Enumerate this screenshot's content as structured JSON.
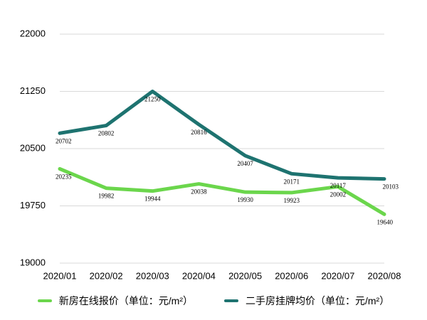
{
  "chart_data": {
    "type": "line",
    "categories": [
      "2020/01",
      "2020/02",
      "2020/03",
      "2020/04",
      "2020/05",
      "2020/06",
      "2020/07",
      "2020/08"
    ],
    "ylim": [
      19000,
      22000
    ],
    "yticks": [
      "19000",
      "19750",
      "20500",
      "21250",
      "22000"
    ],
    "grid": true,
    "legend_position": "bottom",
    "series": [
      {
        "name": "新房在线报价（单位：元/m²）",
        "color": "#6bd64c",
        "values": [
          20235,
          19982,
          19944,
          20038,
          19930,
          19923,
          20002,
          19640
        ],
        "labels": [
          "20235",
          "19982",
          "19944",
          "20038",
          "19930",
          "19923",
          "20002",
          "19640"
        ]
      },
      {
        "name": "二手房挂牌均价（单位：元/m²）",
        "color": "#1e7370",
        "values": [
          20702,
          20802,
          21250,
          20816,
          20407,
          20171,
          20117,
          20103
        ],
        "labels": [
          "20702",
          "20802",
          "21250",
          "20816",
          "20407",
          "20171",
          "20117",
          "20103"
        ]
      }
    ]
  }
}
